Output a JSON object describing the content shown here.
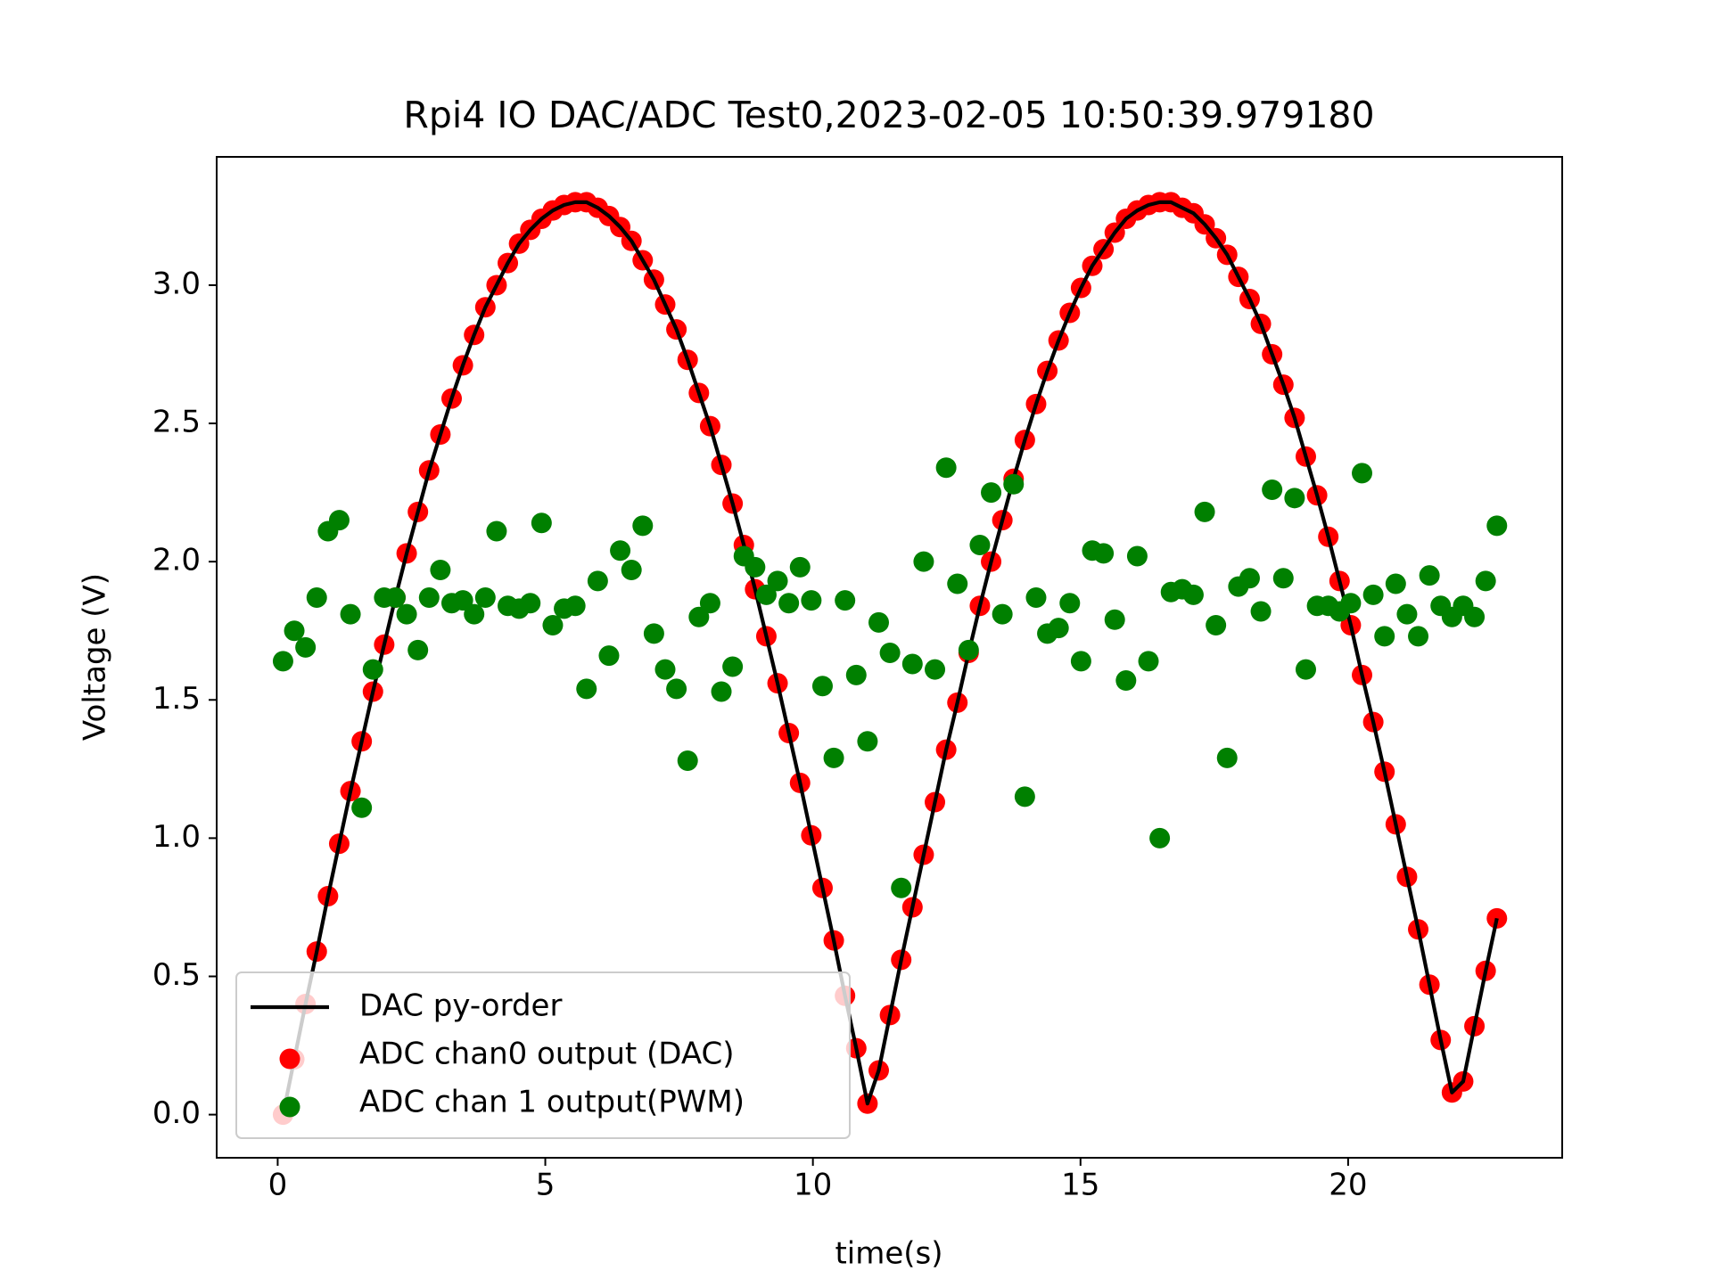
{
  "chart_data": {
    "type": "line",
    "title": "Rpi4 IO DAC/ADC Test0,2023-02-05 10:50:39.979180",
    "xlabel": "time(s)",
    "ylabel": "Voltage (V)",
    "xlim": [
      -1.14,
      24.0
    ],
    "ylim": [
      -0.156,
      3.464
    ],
    "xticks": [
      0,
      5,
      10,
      15,
      20
    ],
    "yticks": [
      {
        "value": 0,
        "label": "0.0"
      },
      {
        "value": 0.5,
        "label": "0.5"
      },
      {
        "value": 1,
        "label": "1.0"
      },
      {
        "value": 1.5,
        "label": "1.5"
      },
      {
        "value": 2,
        "label": "2.0"
      },
      {
        "value": 2.5,
        "label": "2.5"
      },
      {
        "value": 3,
        "label": "3.0"
      }
    ],
    "legend": "lower left",
    "x": [
      0.1,
      0.31,
      0.52,
      0.73,
      0.94,
      1.15,
      1.36,
      1.57,
      1.78,
      1.99,
      2.2,
      2.41,
      2.62,
      2.83,
      3.04,
      3.25,
      3.46,
      3.67,
      3.88,
      4.09,
      4.3,
      4.51,
      4.72,
      4.93,
      5.14,
      5.35,
      5.56,
      5.77,
      5.98,
      6.19,
      6.4,
      6.61,
      6.82,
      7.03,
      7.24,
      7.45,
      7.66,
      7.87,
      8.08,
      8.29,
      8.5,
      8.71,
      8.92,
      9.13,
      9.34,
      9.55,
      9.76,
      9.97,
      10.18,
      10.39,
      10.6,
      10.81,
      11.02,
      11.23,
      11.44,
      11.65,
      11.86,
      12.07,
      12.28,
      12.49,
      12.7,
      12.91,
      13.12,
      13.33,
      13.54,
      13.75,
      13.96,
      14.17,
      14.38,
      14.59,
      14.8,
      15.01,
      15.22,
      15.43,
      15.64,
      15.85,
      16.06,
      16.27,
      16.48,
      16.69,
      16.9,
      17.11,
      17.32,
      17.53,
      17.74,
      17.95,
      18.16,
      18.37,
      18.58,
      18.79,
      19.0,
      19.21,
      19.42,
      19.63,
      19.84,
      20.05,
      20.26,
      20.47,
      20.68,
      20.89,
      21.1,
      21.31,
      21.52,
      21.73,
      21.94,
      22.15,
      22.36,
      22.57,
      22.78
    ],
    "series": [
      {
        "name": "DAC py-order",
        "type": "line",
        "color": "#000000",
        "values": [
          0,
          0.2,
          0.4,
          0.59,
          0.79,
          0.98,
          1.17,
          1.35,
          1.53,
          1.7,
          1.87,
          2.03,
          2.18,
          2.33,
          2.46,
          2.59,
          2.71,
          2.82,
          2.92,
          3.0,
          3.08,
          3.15,
          3.2,
          3.24,
          3.27,
          3.29,
          3.3,
          3.3,
          3.28,
          3.25,
          3.21,
          3.16,
          3.09,
          3.02,
          2.93,
          2.84,
          2.73,
          2.61,
          2.49,
          2.35,
          2.21,
          2.06,
          1.9,
          1.73,
          1.56,
          1.38,
          1.2,
          1.01,
          0.82,
          0.63,
          0.43,
          0.24,
          0.04,
          0.16,
          0.36,
          0.56,
          0.75,
          0.94,
          1.13,
          1.32,
          1.49,
          1.67,
          1.84,
          2.0,
          2.15,
          2.3,
          2.44,
          2.57,
          2.69,
          2.8,
          2.9,
          2.99,
          3.07,
          3.13,
          3.19,
          3.24,
          3.27,
          3.29,
          3.3,
          3.3,
          3.28,
          3.26,
          3.22,
          3.17,
          3.11,
          3.03,
          2.95,
          2.86,
          2.75,
          2.64,
          2.52,
          2.38,
          2.24,
          2.09,
          1.93,
          1.77,
          1.59,
          1.42,
          1.24,
          1.05,
          0.86,
          0.67,
          0.47,
          0.27,
          0.08,
          0.12,
          0.32,
          0.52,
          0.71
        ]
      },
      {
        "name": "ADC chan0 output (DAC)",
        "type": "scatter",
        "color": "#ff0000",
        "values": [
          0,
          0.2,
          0.4,
          0.59,
          0.79,
          0.98,
          1.17,
          1.35,
          1.53,
          1.7,
          1.87,
          2.03,
          2.18,
          2.33,
          2.46,
          2.59,
          2.71,
          2.82,
          2.92,
          3.0,
          3.08,
          3.15,
          3.2,
          3.24,
          3.27,
          3.29,
          3.3,
          3.3,
          3.28,
          3.25,
          3.21,
          3.16,
          3.09,
          3.02,
          2.93,
          2.84,
          2.73,
          2.61,
          2.49,
          2.35,
          2.21,
          2.06,
          1.9,
          1.73,
          1.56,
          1.38,
          1.2,
          1.01,
          0.82,
          0.63,
          0.43,
          0.24,
          0.04,
          0.16,
          0.36,
          0.56,
          0.75,
          0.94,
          1.13,
          1.32,
          1.49,
          1.67,
          1.84,
          2.0,
          2.15,
          2.3,
          2.44,
          2.57,
          2.69,
          2.8,
          2.9,
          2.99,
          3.07,
          3.13,
          3.19,
          3.24,
          3.27,
          3.29,
          3.3,
          3.3,
          3.28,
          3.26,
          3.22,
          3.17,
          3.11,
          3.03,
          2.95,
          2.86,
          2.75,
          2.64,
          2.52,
          2.38,
          2.24,
          2.09,
          1.93,
          1.77,
          1.59,
          1.42,
          1.24,
          1.05,
          0.86,
          0.67,
          0.47,
          0.27,
          0.08,
          0.12,
          0.32,
          0.52,
          0.71
        ]
      },
      {
        "name": "ADC chan 1 output(PWM)",
        "type": "scatter",
        "color": "#008000",
        "values": [
          1.64,
          1.75,
          1.69,
          1.87,
          2.11,
          2.15,
          1.81,
          1.11,
          1.61,
          1.87,
          1.87,
          1.81,
          1.68,
          1.87,
          1.97,
          1.85,
          1.86,
          1.81,
          1.87,
          2.11,
          1.84,
          1.83,
          1.85,
          2.14,
          1.77,
          1.83,
          1.84,
          1.54,
          1.93,
          1.66,
          2.04,
          1.97,
          2.13,
          1.74,
          1.61,
          1.54,
          1.28,
          1.8,
          1.85,
          1.53,
          1.62,
          2.02,
          1.98,
          1.88,
          1.93,
          1.85,
          1.98,
          1.86,
          1.55,
          1.29,
          1.86,
          1.59,
          1.35,
          1.78,
          1.67,
          0.82,
          1.63,
          2.0,
          1.61,
          2.34,
          1.92,
          1.68,
          2.06,
          2.25,
          1.81,
          2.28,
          1.15,
          1.87,
          1.74,
          1.76,
          1.85,
          1.64,
          2.04,
          2.03,
          1.79,
          1.57,
          2.02,
          1.64,
          1.0,
          1.89,
          1.9,
          1.88,
          2.18,
          1.77,
          1.29,
          1.91,
          1.94,
          1.82,
          2.26,
          1.94,
          2.23,
          1.61,
          1.84,
          1.84,
          1.82,
          1.85,
          2.32,
          1.88,
          1.73,
          1.92,
          1.81,
          1.73,
          1.95,
          1.84,
          1.8,
          1.84,
          1.8,
          1.93,
          2.13
        ]
      }
    ]
  }
}
